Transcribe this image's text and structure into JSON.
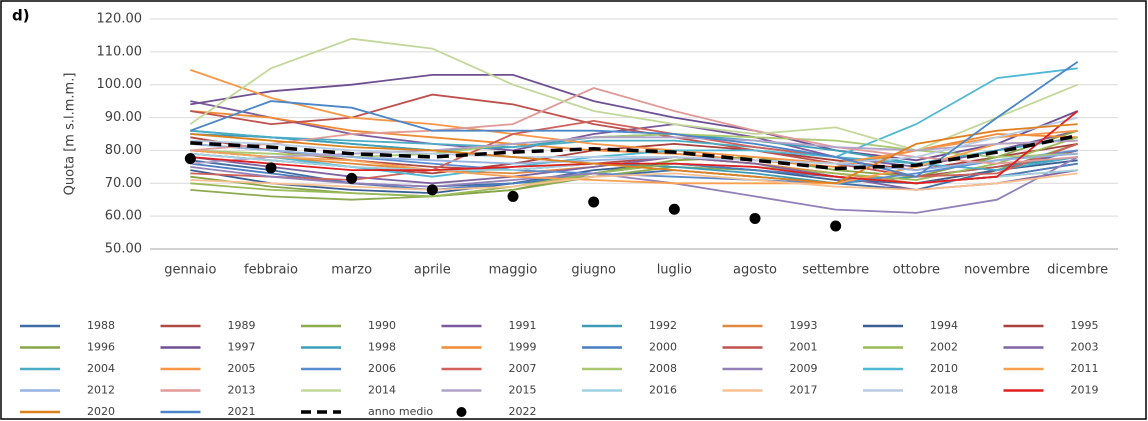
{
  "chart_data": {
    "type": "line",
    "panel_label": "d)",
    "y_label": "Quota [m s.l.m.m.]",
    "categories": [
      "gennaio",
      "febbraio",
      "marzo",
      "aprile",
      "maggio",
      "giugno",
      "luglio",
      "agosto",
      "settembre",
      "ottobre",
      "novembre",
      "dicembre"
    ],
    "ylim": [
      50,
      120
    ],
    "yticks": [
      {
        "value": 50,
        "label": "50.00"
      },
      {
        "value": 60,
        "label": "60.00"
      },
      {
        "value": 70,
        "label": "70.00"
      },
      {
        "value": 80,
        "label": "80.00"
      },
      {
        "value": 90,
        "label": "90.00"
      },
      {
        "value": 100,
        "label": "100.00"
      },
      {
        "value": 110,
        "label": "110.00"
      },
      {
        "value": 120,
        "label": "120.00"
      }
    ],
    "grid": true,
    "legend": "bottom",
    "series": [
      {
        "name": "1988",
        "color": "#3f6ea6",
        "values": [
          77,
          74,
          70,
          69,
          70,
          72,
          74,
          72,
          70,
          68,
          74,
          80
        ]
      },
      {
        "name": "1989",
        "color": "#b04a45",
        "values": [
          84,
          80,
          77,
          75,
          74,
          76,
          78,
          76,
          72,
          70,
          72,
          76
        ]
      },
      {
        "name": "1990",
        "color": "#8caa4e",
        "values": [
          68,
          66,
          65,
          66,
          68,
          72,
          75,
          74,
          72,
          70,
          74,
          82
        ]
      },
      {
        "name": "1991",
        "color": "#7a5a9c",
        "values": [
          95,
          90,
          85,
          82,
          80,
          85,
          88,
          84,
          78,
          75,
          80,
          86
        ]
      },
      {
        "name": "1992",
        "color": "#3e9bb4",
        "values": [
          85,
          84,
          82,
          80,
          78,
          76,
          75,
          73,
          70,
          72,
          75,
          78
        ]
      },
      {
        "name": "1993",
        "color": "#e0893e",
        "values": [
          80,
          78,
          76,
          74,
          73,
          75,
          78,
          76,
          73,
          70,
          72,
          74
        ]
      },
      {
        "name": "1994",
        "color": "#3a5f95",
        "values": [
          74,
          70,
          68,
          67,
          70,
          74,
          76,
          74,
          71,
          70,
          74,
          77
        ]
      },
      {
        "name": "1995",
        "color": "#a8403c",
        "values": [
          79,
          77,
          75,
          73,
          76,
          80,
          82,
          80,
          77,
          74,
          78,
          82
        ]
      },
      {
        "name": "1996",
        "color": "#86a548",
        "values": [
          72,
          69,
          67,
          66,
          68,
          73,
          77,
          78,
          74,
          72,
          78,
          86
        ]
      },
      {
        "name": "1997",
        "color": "#6e4f91",
        "values": [
          94,
          98,
          100,
          103,
          103,
          95,
          90,
          86,
          80,
          77,
          82,
          92
        ]
      },
      {
        "name": "1998",
        "color": "#3aa0b8",
        "values": [
          86,
          84,
          82,
          80,
          81,
          84,
          85,
          83,
          80,
          76,
          80,
          84
        ]
      },
      {
        "name": "1999",
        "color": "#f08a35",
        "values": [
          92,
          90,
          86,
          84,
          82,
          80,
          79,
          77,
          75,
          80,
          85,
          84
        ]
      },
      {
        "name": "2000",
        "color": "#4a7cc0",
        "values": [
          76,
          73,
          70,
          68,
          70,
          73,
          76,
          74,
          72,
          70,
          72,
          76
        ]
      },
      {
        "name": "2001",
        "color": "#c0504d",
        "values": [
          92,
          88,
          90,
          97,
          94,
          88,
          84,
          80,
          76,
          72,
          75,
          80
        ]
      },
      {
        "name": "2002",
        "color": "#9bbb59",
        "values": [
          70,
          68,
          67,
          66,
          69,
          73,
          76,
          75,
          73,
          71,
          76,
          84
        ]
      },
      {
        "name": "2003",
        "color": "#8064a2",
        "values": [
          78,
          75,
          72,
          70,
          72,
          75,
          78,
          76,
          72,
          68,
          70,
          74
        ]
      },
      {
        "name": "2004",
        "color": "#4bacc6",
        "values": [
          86,
          84,
          83,
          82,
          81,
          83,
          83,
          81,
          78,
          76,
          74,
          78
        ]
      },
      {
        "name": "2005",
        "color": "#f79646",
        "values": [
          104.5,
          96,
          90,
          88,
          85,
          82,
          80,
          78,
          76,
          80,
          84,
          86
        ]
      },
      {
        "name": "2006",
        "color": "#5b8bd0",
        "values": [
          82,
          80,
          78,
          76,
          74,
          73,
          72,
          71,
          70,
          73,
          77,
          80
        ]
      },
      {
        "name": "2007",
        "color": "#d0605a",
        "values": [
          73,
          72,
          71,
          74,
          85,
          89,
          85,
          81,
          78,
          72,
          73,
          82
        ]
      },
      {
        "name": "2008",
        "color": "#aac870",
        "values": [
          80,
          79,
          78,
          79,
          82,
          84,
          85,
          84,
          83,
          80,
          78,
          79
        ]
      },
      {
        "name": "2009",
        "color": "#9480b8",
        "values": [
          75,
          72,
          70,
          69,
          71,
          73,
          70,
          66,
          62,
          61,
          65,
          78
        ]
      },
      {
        "name": "2010",
        "color": "#4fb8d4",
        "values": [
          80,
          78,
          75,
          72,
          75,
          78,
          80,
          80,
          78,
          88,
          102,
          105
        ]
      },
      {
        "name": "2011",
        "color": "#f9a050",
        "values": [
          80,
          78,
          77,
          74,
          72,
          71,
          70,
          70,
          70,
          75,
          82,
          83
        ]
      },
      {
        "name": "2012",
        "color": "#95b3e0",
        "values": [
          82,
          80,
          78,
          77,
          76,
          77,
          78,
          77,
          76,
          74,
          77,
          79
        ]
      },
      {
        "name": "2013",
        "color": "#e09a98",
        "values": [
          80,
          82,
          85,
          86,
          88,
          99,
          92,
          86,
          81,
          78,
          76,
          78
        ]
      },
      {
        "name": "2014",
        "color": "#c2d89a",
        "values": [
          88,
          105,
          114,
          111,
          100,
          92,
          88,
          85,
          87,
          80,
          90,
          100
        ]
      },
      {
        "name": "2015",
        "color": "#b0a2c8",
        "values": [
          76,
          78,
          79,
          80,
          82,
          84,
          84,
          83,
          81,
          80,
          82,
          83
        ]
      },
      {
        "name": "2016",
        "color": "#9dd2e2",
        "values": [
          79,
          77,
          75,
          74,
          74,
          76,
          76,
          75,
          72,
          70,
          72,
          74
        ]
      },
      {
        "name": "2017",
        "color": "#fac090",
        "values": [
          71,
          70,
          69,
          68,
          69,
          72,
          73,
          71,
          69,
          68,
          70,
          73
        ]
      },
      {
        "name": "2018",
        "color": "#b8cce4",
        "values": [
          83,
          82,
          80,
          79,
          78,
          78,
          78,
          77,
          76,
          78,
          84,
          90
        ]
      },
      {
        "name": "2019",
        "color": "#e02020",
        "values": [
          78,
          76,
          74,
          74,
          75,
          76,
          76,
          75,
          72,
          70,
          72,
          92
        ]
      },
      {
        "name": "2020",
        "color": "#e0801c",
        "values": [
          85,
          83,
          81,
          80,
          78,
          76,
          74,
          72,
          70,
          82,
          86,
          88
        ]
      },
      {
        "name": "2021",
        "color": "#4a86c8",
        "values": [
          86,
          95,
          93,
          86,
          86,
          86,
          85,
          82,
          78,
          72,
          90,
          107
        ]
      },
      {
        "name": "anno medio",
        "color": "#000000",
        "line_style": "dashed",
        "values": [
          82.3,
          81,
          79,
          78,
          79.5,
          80.5,
          79.5,
          77,
          74.5,
          75.5,
          79.5,
          84.5
        ]
      },
      {
        "name": "2022",
        "color": "#000000",
        "marker": "circle",
        "values": [
          77.5,
          74.7,
          71.5,
          68,
          66,
          64.3,
          62.1,
          59.3,
          57,
          null,
          null,
          null
        ]
      }
    ]
  }
}
